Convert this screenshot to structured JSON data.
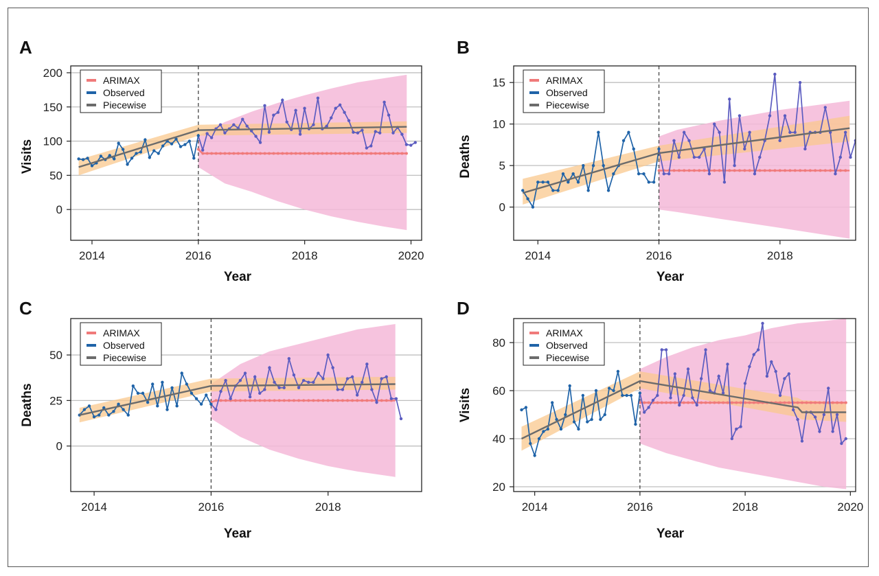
{
  "colors": {
    "arimax": "#f07a7a",
    "arimax_band": "#f4b8d8",
    "observed": "#1f63a8",
    "observed_after": "#5b5cc0",
    "piecewise": "#6b6b6b",
    "piecewise_band": "#f9c88d",
    "grid": "#bfbfbf",
    "intervention": "#444444"
  },
  "chart_data": [
    {
      "panel": "A",
      "type": "line",
      "ylabel": "Visits",
      "xlabel": "Year",
      "xlim": [
        2013.6,
        2020.2
      ],
      "ylim": [
        -45,
        210
      ],
      "xticks": [
        2014,
        2016,
        2018,
        2020
      ],
      "yticks": [
        0,
        50,
        100,
        150,
        200
      ],
      "grid": true,
      "legend": {
        "position": "top-left",
        "entries": [
          "ARIMAX",
          "Observed",
          "Piecewise"
        ]
      },
      "intervention_x": 2016,
      "observed": {
        "start": 2013.75,
        "step": 0.0833,
        "values": [
          74,
          73,
          75,
          64,
          68,
          78,
          73,
          79,
          74,
          97,
          88,
          66,
          75,
          82,
          84,
          102,
          76,
          86,
          82,
          93,
          100,
          96,
          103,
          92,
          95,
          100,
          75,
          108,
          87,
          111,
          105,
          118,
          124,
          112,
          118,
          124,
          119,
          132,
          122,
          115,
          107,
          98,
          152,
          113,
          138,
          142,
          160,
          128,
          117,
          145,
          110,
          148,
          118,
          124,
          163,
          118,
          122,
          134,
          148,
          153,
          142,
          130,
          113,
          112,
          116,
          90,
          93,
          114,
          112,
          157,
          138,
          112,
          120,
          110,
          95,
          94,
          98
        ]
      },
      "piecewise": {
        "x": [
          2013.75,
          2016.0,
          2019.92
        ],
        "y": [
          62,
          116,
          121
        ],
        "band_lower": [
          50,
          108,
          112
        ],
        "band_upper": [
          73,
          124,
          129
        ]
      },
      "arimax": {
        "x": [
          2016.0,
          2016.08,
          2019.92
        ],
        "y": [
          88,
          82,
          82
        ],
        "band_x": [
          2016.0,
          2016.5,
          2017.0,
          2017.5,
          2018.0,
          2018.5,
          2019.0,
          2019.5,
          2019.92
        ],
        "band_lower": [
          62,
          38,
          26,
          12,
          0,
          -10,
          -18,
          -25,
          -30
        ],
        "band_upper": [
          108,
          128,
          143,
          156,
          167,
          177,
          186,
          192,
          197
        ]
      }
    },
    {
      "panel": "B",
      "type": "line",
      "ylabel": "Deaths",
      "xlabel": "Year",
      "xlim": [
        2013.6,
        2019.25
      ],
      "ylim": [
        -4,
        17
      ],
      "xticks": [
        2014,
        2016,
        2018
      ],
      "yticks": [
        0,
        5,
        10,
        15
      ],
      "grid": true,
      "legend": {
        "position": "top-left",
        "entries": [
          "ARIMAX",
          "Observed",
          "Piecewise"
        ]
      },
      "intervention_x": 2016,
      "observed": {
        "start": 2013.75,
        "step": 0.0833,
        "values": [
          2,
          1,
          0,
          3,
          3,
          3,
          2,
          2,
          4,
          3,
          4,
          3,
          5,
          2,
          5,
          9,
          5,
          2,
          4,
          5,
          8,
          9,
          7,
          4,
          4,
          3,
          3,
          7,
          4,
          4,
          8,
          6,
          9,
          8,
          6,
          6,
          7,
          4,
          10,
          9,
          3,
          13,
          5,
          11,
          7,
          9,
          4,
          6,
          8,
          11,
          16,
          8,
          11,
          9,
          9,
          15,
          7,
          9,
          9,
          9,
          12,
          9,
          4,
          6,
          9,
          6,
          8
        ]
      },
      "piecewise": {
        "x": [
          2013.75,
          2016.0,
          2019.15
        ],
        "y": [
          1.7,
          6.5,
          9.5
        ],
        "band_lower": [
          0.3,
          5.5,
          7.9
        ],
        "band_upper": [
          3.4,
          7.4,
          11.0
        ]
      },
      "arimax": {
        "x": [
          2016.0,
          2019.15
        ],
        "y": [
          4.4,
          4.4
        ],
        "band_x": [
          2016.0,
          2016.3,
          2017.0,
          2018.0,
          2019.15
        ],
        "band_lower": [
          -0.3,
          -0.6,
          -1.4,
          -2.5,
          -3.8
        ],
        "band_upper": [
          8.5,
          9.3,
          10.4,
          11.7,
          12.8
        ]
      }
    },
    {
      "panel": "C",
      "type": "line",
      "ylabel": "Deaths",
      "xlabel": "Year",
      "xlim": [
        2013.6,
        2019.6
      ],
      "ylim": [
        -25,
        70
      ],
      "xticks": [
        2014,
        2016,
        2018
      ],
      "yticks": [
        0,
        25,
        50
      ],
      "grid": true,
      "legend": {
        "position": "top-left",
        "entries": [
          "ARIMAX",
          "Observed",
          "Piecewise"
        ]
      },
      "intervention_x": 2016,
      "observed": {
        "start": 2013.75,
        "step": 0.0833,
        "values": [
          17,
          20,
          22,
          16,
          17,
          21,
          17,
          19,
          23,
          20,
          17,
          33,
          29,
          29,
          24,
          34,
          22,
          35,
          20,
          32,
          22,
          40,
          34,
          29,
          26,
          23,
          28,
          23,
          20,
          30,
          36,
          26,
          33,
          36,
          40,
          27,
          38,
          29,
          31,
          43,
          35,
          32,
          32,
          48,
          39,
          32,
          36,
          35,
          35,
          40,
          37,
          50,
          43,
          31,
          31,
          37,
          38,
          28,
          35,
          45,
          31,
          24,
          37,
          38,
          26,
          26,
          15
        ]
      },
      "piecewise": {
        "x": [
          2013.75,
          2016.0,
          2019.15
        ],
        "y": [
          17,
          33,
          34
        ],
        "band_lower": [
          13,
          30,
          31
        ],
        "band_upper": [
          21,
          37,
          38
        ]
      },
      "arimax": {
        "x": [
          2016.0,
          2016.08,
          2019.15
        ],
        "y": [
          24,
          25,
          25
        ],
        "band_x": [
          2016.0,
          2016.5,
          2017.0,
          2017.5,
          2018.0,
          2018.5,
          2019.15
        ],
        "band_lower": [
          15,
          5,
          -2,
          -7,
          -11,
          -14,
          -17
        ],
        "band_upper": [
          34,
          45,
          52,
          56,
          60,
          64,
          67
        ]
      }
    },
    {
      "panel": "D",
      "type": "line",
      "ylabel": "Visits",
      "xlabel": "Year",
      "xlim": [
        2013.6,
        2020.1
      ],
      "ylim": [
        18,
        90
      ],
      "xticks": [
        2014,
        2016,
        2018,
        2020
      ],
      "yticks": [
        20,
        40,
        60,
        80
      ],
      "grid": true,
      "legend": {
        "position": "top-left",
        "entries": [
          "ARIMAX",
          "Observed",
          "Piecewise"
        ]
      },
      "intervention_x": 2016,
      "observed": {
        "start": 2013.75,
        "step": 0.0833,
        "values": [
          52,
          53,
          38,
          33,
          40,
          43,
          44,
          55,
          48,
          44,
          50,
          62,
          47,
          44,
          58,
          47,
          48,
          60,
          48,
          50,
          61,
          60,
          68,
          58,
          58,
          58,
          46,
          59,
          51,
          53,
          56,
          58,
          77,
          77,
          57,
          67,
          54,
          58,
          69,
          57,
          54,
          65,
          77,
          60,
          59,
          66,
          59,
          71,
          40,
          44,
          45,
          63,
          70,
          75,
          77,
          88,
          66,
          72,
          68,
          58,
          65,
          67,
          52,
          48,
          39,
          51,
          51,
          49,
          43,
          50,
          61,
          43,
          50,
          38,
          40
        ]
      },
      "piecewise": {
        "x": [
          2013.75,
          2016.0,
          2019.0,
          2019.08,
          2019.92
        ],
        "y": [
          40,
          64,
          53,
          51,
          51
        ],
        "band_lower": [
          35,
          61,
          49,
          48,
          47
        ],
        "band_upper": [
          45,
          68,
          57,
          56,
          55
        ]
      },
      "arimax": {
        "x": [
          2016.0,
          2019.92
        ],
        "y": [
          55,
          55
        ],
        "band_x": [
          2016.0,
          2016.5,
          2017.0,
          2017.5,
          2018.0,
          2018.5,
          2019.0,
          2019.5,
          2019.92
        ],
        "band_lower": [
          38,
          34,
          31,
          28,
          26,
          24,
          22,
          20,
          19
        ],
        "band_upper": [
          69,
          74,
          78,
          81,
          83,
          86,
          88,
          89,
          90
        ]
      }
    }
  ],
  "panels": [
    {
      "letter": "A",
      "ylabel": "Visits",
      "xlabel": "Year",
      "xtick_labels": [
        "2014",
        "2016",
        "2018",
        "2020"
      ],
      "ytick_labels": [
        "0",
        "50",
        "100",
        "150",
        "200"
      ],
      "legend": [
        "ARIMAX",
        "Observed",
        "Piecewise"
      ]
    },
    {
      "letter": "B",
      "ylabel": "Deaths",
      "xlabel": "Year",
      "xtick_labels": [
        "2014",
        "2016",
        "2018"
      ],
      "ytick_labels": [
        "0",
        "5",
        "10",
        "15"
      ],
      "legend": [
        "ARIMAX",
        "Observed",
        "Piecewise"
      ]
    },
    {
      "letter": "C",
      "ylabel": "Deaths",
      "xlabel": "Year",
      "xtick_labels": [
        "2014",
        "2016",
        "2018"
      ],
      "ytick_labels": [
        "0",
        "25",
        "50"
      ],
      "legend": [
        "ARIMAX",
        "Observed",
        "Piecewise"
      ]
    },
    {
      "letter": "D",
      "ylabel": "Visits",
      "xlabel": "Year",
      "xtick_labels": [
        "2014",
        "2016",
        "2018",
        "2020"
      ],
      "ytick_labels": [
        "20",
        "40",
        "60",
        "80"
      ],
      "legend": [
        "ARIMAX",
        "Observed",
        "Piecewise"
      ]
    }
  ]
}
